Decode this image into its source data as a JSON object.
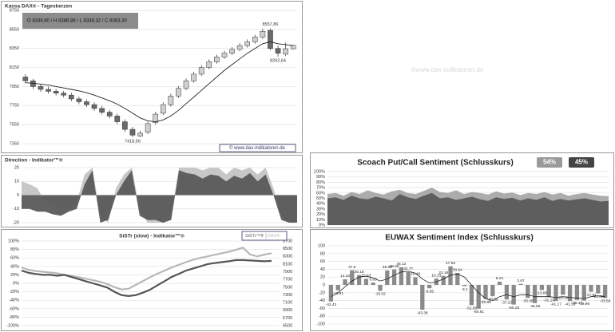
{
  "watermark": "©www.dax-indikatoren.de",
  "chart_data": [
    {
      "type": "candlestick",
      "title": "Kassa DAX® - Tageskerzen",
      "info": "O 8346,60 / H 8386,86 / L 8338,32 / C 8383,30",
      "footer": "© www.dax-indikatoren.de",
      "annotations": [
        "8557,86",
        "8262,64",
        "7418,56"
      ],
      "open": [
        8050,
        8010,
        7950,
        7920,
        7900,
        7880,
        7860,
        7820,
        7790,
        7760,
        7720,
        7680,
        7640,
        7580,
        7500,
        7430,
        7470,
        7570,
        7670,
        7760,
        7850,
        7930,
        8010,
        8080,
        8150,
        8210,
        8260,
        8300,
        8340,
        8380,
        8420,
        8470,
        8540,
        8350,
        8290,
        8346.6
      ],
      "high": [
        8080,
        8030,
        7975,
        7950,
        7925,
        7905,
        7885,
        7845,
        7815,
        7785,
        7745,
        7705,
        7665,
        7605,
        7525,
        7485,
        7580,
        7685,
        7785,
        7875,
        7955,
        8035,
        8105,
        8175,
        8235,
        8285,
        8325,
        8365,
        8405,
        8445,
        8495,
        8557.86,
        8560,
        8380,
        8410,
        8386.86
      ],
      "low": [
        7985,
        7925,
        7895,
        7875,
        7855,
        7835,
        7795,
        7765,
        7735,
        7695,
        7655,
        7615,
        7555,
        7475,
        7418.56,
        7420,
        7450,
        7550,
        7650,
        7740,
        7830,
        7910,
        7990,
        8060,
        8130,
        8190,
        8240,
        8280,
        8320,
        8360,
        8400,
        8450,
        8330,
        8262.64,
        8270,
        8338.32
      ],
      "close": [
        8010,
        7950,
        7920,
        7900,
        7880,
        7860,
        7820,
        7790,
        7760,
        7720,
        7680,
        7640,
        7580,
        7500,
        7440,
        7460,
        7560,
        7660,
        7760,
        7850,
        7930,
        8010,
        8080,
        8150,
        8210,
        8260,
        8300,
        8340,
        8380,
        8420,
        8470,
        8530,
        8350,
        8300,
        8346.6,
        8383.3
      ],
      "ma": [
        7990,
        7985,
        7975,
        7965,
        7950,
        7935,
        7920,
        7905,
        7885,
        7860,
        7830,
        7800,
        7765,
        7720,
        7670,
        7620,
        7590,
        7580,
        7600,
        7640,
        7700,
        7770,
        7840,
        7910,
        7980,
        8050,
        8120,
        8180,
        8240,
        8300,
        8350,
        8400,
        8420,
        8400,
        8390,
        8380
      ],
      "ylim": [
        7350,
        8750
      ],
      "yticks": [
        7350,
        7550,
        7750,
        7950,
        8150,
        8350,
        8550,
        8750
      ],
      "grid": true
    },
    {
      "type": "area",
      "title": "Direction - Indikator™®",
      "series": [
        {
          "color": "#c4c4c4",
          "values": [
            10,
            8,
            5,
            -5,
            -8,
            -10,
            -10,
            -5,
            15,
            20,
            -15,
            -20,
            5,
            15,
            20,
            -10,
            -20,
            -20,
            -20,
            -15,
            20,
            20,
            20,
            18,
            20,
            20,
            15,
            20,
            18,
            20,
            15,
            20,
            5,
            -15,
            -20,
            -20
          ]
        },
        {
          "color": "#5a5a5a",
          "values": [
            -10,
            -10,
            -12,
            -12,
            -14,
            -15,
            -12,
            -10,
            8,
            18,
            -20,
            -18,
            0,
            10,
            18,
            -15,
            -18,
            -18,
            -20,
            -18,
            18,
            16,
            15,
            12,
            15,
            14,
            10,
            14,
            12,
            16,
            10,
            15,
            0,
            -18,
            -20,
            -20
          ]
        }
      ],
      "ylim": [
        -20,
        20
      ],
      "yticks": [
        -20,
        -10,
        0,
        10,
        20
      ],
      "grid": true
    },
    {
      "type": "line",
      "title": "SiSTr (slow) - Indikator™®",
      "series": [
        {
          "name": "SiSTr™®",
          "color": "#555555",
          "axis": "y",
          "values": [
            30,
            25,
            22,
            20,
            20,
            18,
            20,
            15,
            10,
            5,
            0,
            -5,
            -10,
            -20,
            -28,
            -30,
            -28,
            -22,
            -15,
            -5,
            5,
            15,
            22,
            30,
            35,
            40,
            45,
            48,
            50,
            52,
            55,
            55,
            54,
            53,
            52,
            53
          ]
        },
        {
          "name": "DAX®",
          "color": "#b8b8b8",
          "axis": "y2",
          "values": [
            8010,
            7950,
            7920,
            7900,
            7880,
            7860,
            7820,
            7790,
            7760,
            7720,
            7680,
            7640,
            7580,
            7500,
            7440,
            7460,
            7560,
            7660,
            7760,
            7850,
            7930,
            8010,
            8080,
            8150,
            8210,
            8260,
            8300,
            8340,
            8380,
            8420,
            8470,
            8530,
            8350,
            8300,
            8346.6,
            8383.3
          ]
        }
      ],
      "ylim": [
        -100,
        100
      ],
      "yticks": [
        {
          "value": -100,
          "label": "-100%"
        },
        {
          "value": -80,
          "label": "-80%"
        },
        {
          "value": -60,
          "label": "-60%"
        },
        {
          "value": -40,
          "label": "-40%"
        },
        {
          "value": -20,
          "label": "-20%"
        },
        {
          "value": 0,
          "label": "0%"
        },
        {
          "value": 20,
          "label": "20%"
        },
        {
          "value": 40,
          "label": "40%"
        },
        {
          "value": 60,
          "label": "60%"
        },
        {
          "value": 80,
          "label": "80%"
        },
        {
          "value": 100,
          "label": "100%"
        }
      ],
      "y2lim": [
        6500,
        8700
      ],
      "y2ticks": [
        6500,
        6700,
        6900,
        7100,
        7300,
        7500,
        7700,
        7900,
        8100,
        8300,
        8500,
        8700
      ],
      "grid": true
    },
    {
      "type": "area",
      "title": "Scoach Put/Call Sentiment (Schlusskurs)",
      "badges": [
        {
          "value": 54,
          "label": "54%",
          "color": "#9a9a9a"
        },
        {
          "value": 45,
          "label": "45%",
          "color": "#444444"
        }
      ],
      "series": [
        {
          "color": "#a8a8a8",
          "values": [
            58,
            60,
            55,
            62,
            58,
            65,
            60,
            57,
            63,
            66,
            60,
            58,
            64,
            70,
            62,
            60,
            65,
            58,
            62,
            60,
            57,
            63,
            59,
            61,
            56,
            60,
            58,
            62,
            57,
            60,
            55,
            58,
            60,
            57,
            55,
            54
          ]
        },
        {
          "color": "#5a5a5a",
          "values": [
            50,
            52,
            47,
            55,
            50,
            48,
            53,
            50,
            46,
            58,
            52,
            49,
            55,
            60,
            50,
            52,
            47,
            50,
            53,
            48,
            45,
            52,
            49,
            51,
            46,
            50,
            47,
            52,
            45,
            49,
            46,
            48,
            50,
            47,
            44,
            45
          ]
        }
      ],
      "ylim": [
        0,
        100
      ],
      "yticks": [
        {
          "value": 0,
          "label": "0%"
        },
        {
          "value": 10,
          "label": "10%"
        },
        {
          "value": 20,
          "label": "20%"
        },
        {
          "value": 30,
          "label": "30%"
        },
        {
          "value": 40,
          "label": "40%"
        },
        {
          "value": 50,
          "label": "50%"
        },
        {
          "value": 60,
          "label": "60%"
        },
        {
          "value": 70,
          "label": "70%"
        },
        {
          "value": 80,
          "label": "80%"
        },
        {
          "value": 90,
          "label": "90%"
        },
        {
          "value": 100,
          "label": "100%"
        }
      ],
      "grid": true
    },
    {
      "type": "bar",
      "title": "EUWAX Sentiment Index (Schlusskurs)",
      "color": "#8a8a8a",
      "line_color": "#222222",
      "values": [
        -42.42,
        -13.81,
        14.43,
        37.5,
        25.15,
        15.63,
        6.03,
        -15.02,
        36.93,
        39.58,
        45.12,
        32.77,
        19.48,
        -63.38,
        -8.65,
        16.33,
        23.18,
        47.63,
        30.64,
        -3.1,
        -51.65,
        -60.81,
        -35.89,
        -28.96,
        8.21,
        -37.23,
        -50.18,
        2.67,
        -33.38,
        -46.55,
        -13.08,
        -31.19,
        -41.17,
        -25.19,
        -41.59,
        -38.17,
        -39.99,
        -17.61,
        -21.66,
        -33.58
      ],
      "line": [
        -30,
        -20,
        -5,
        10,
        20,
        22,
        18,
        10,
        15,
        25,
        33,
        35,
        30,
        15,
        5,
        8,
        15,
        25,
        28,
        20,
        0,
        -20,
        -35,
        -40,
        -30,
        -25,
        -30,
        -25,
        -25,
        -30,
        -30,
        -30,
        -32,
        -30,
        -32,
        -34,
        -35,
        -30,
        -28,
        -30
      ],
      "ylim": [
        -100,
        100
      ],
      "yticks": [
        -100,
        -80,
        -60,
        -40,
        -20,
        0,
        20,
        40,
        60,
        80,
        100
      ],
      "grid": true
    }
  ]
}
